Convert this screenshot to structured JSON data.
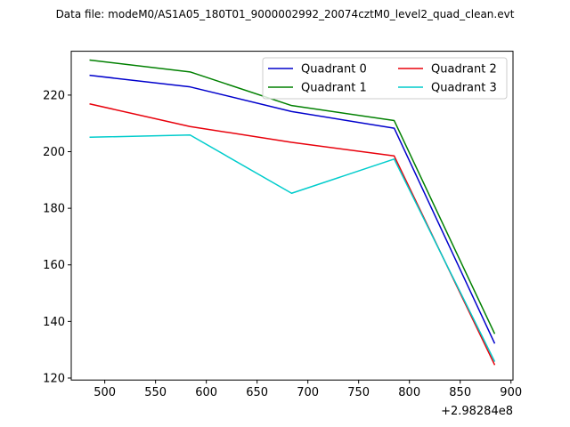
{
  "chart_data": {
    "type": "line",
    "title": "Data file: modeM0/AS1A05_180T01_9000002992_20074cztM0_level2_quad_clean.evt",
    "x_offset_label": "+2.98284e8",
    "x": [
      485,
      584,
      684,
      785,
      884
    ],
    "xticks": [
      500,
      550,
      600,
      650,
      700,
      750,
      800,
      850,
      900
    ],
    "yticks": [
      120,
      140,
      160,
      180,
      200,
      220
    ],
    "xlim": [
      467,
      902
    ],
    "ylim": [
      119.3,
      235.5
    ],
    "legend_position": "top-right",
    "series": [
      {
        "name": "Quadrant 0",
        "color": "#0000cc",
        "values": [
          227.0,
          222.9,
          214.2,
          208.3,
          132.2
        ]
      },
      {
        "name": "Quadrant 1",
        "color": "#008000",
        "values": [
          232.4,
          228.2,
          216.3,
          211.0,
          135.6
        ]
      },
      {
        "name": "Quadrant 2",
        "color": "#e8000b",
        "values": [
          216.9,
          208.9,
          203.3,
          198.5,
          124.6
        ]
      },
      {
        "name": "Quadrant 3",
        "color": "#00cccc",
        "values": [
          205.1,
          205.9,
          185.3,
          197.4,
          125.8
        ]
      }
    ]
  }
}
